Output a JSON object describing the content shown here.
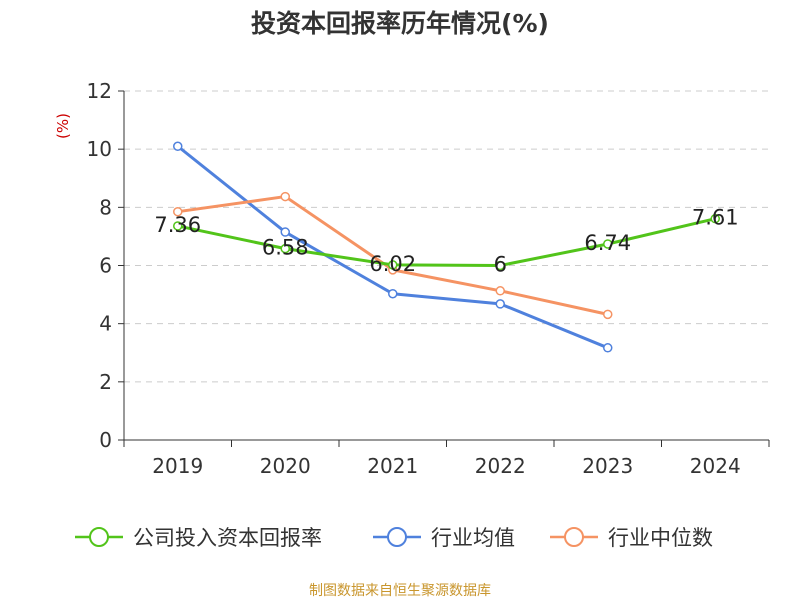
{
  "chart_data": {
    "type": "line",
    "title": "投资本回报率历年情况(%)",
    "ylabel": "(%)",
    "xlabel": "",
    "categories": [
      "2019",
      "2020",
      "2021",
      "2022",
      "2023",
      "2024"
    ],
    "ylim": [
      0,
      12
    ],
    "yticks": [
      0,
      2,
      4,
      6,
      8,
      10,
      12
    ],
    "grid": true,
    "legend_position": "bottom",
    "series": [
      {
        "name": "公司投入资本回报率",
        "color": "#52c41a",
        "values": [
          7.36,
          6.58,
          6.02,
          6,
          6.74,
          7.61
        ],
        "labels": [
          "7.36",
          "6.58",
          "6.02",
          "6",
          "6.74",
          "7.61"
        ]
      },
      {
        "name": "行业均值",
        "color": "#4f81dd",
        "values": [
          10.1,
          7.15,
          5.03,
          4.68,
          3.17,
          null
        ]
      },
      {
        "name": "行业中位数",
        "color": "#f59363",
        "values": [
          7.85,
          8.37,
          5.85,
          5.13,
          4.32,
          null
        ]
      }
    ]
  },
  "footer": {
    "source": "制图数据来自恒生聚源数据库"
  }
}
